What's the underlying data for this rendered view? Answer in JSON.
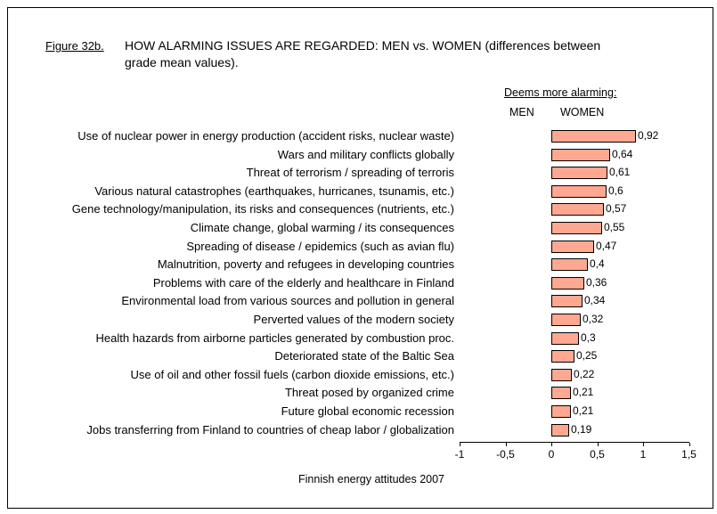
{
  "figure": {
    "label": "Figure 32b.",
    "title_line1": "HOW ALARMING ISSUES ARE REGARDED: MEN vs. WOMEN (differences between",
    "title_line2": "grade mean values)."
  },
  "header": {
    "deems": "Deems more alarming:",
    "men": "MEN",
    "women": "WOMEN"
  },
  "footer": "Finnish energy attitudes 2007",
  "chart_data": {
    "type": "bar",
    "orientation": "horizontal",
    "title": "HOW ALARMING ISSUES ARE REGARDED: MEN vs. WOMEN (differences between grade mean values).",
    "categories": [
      "Use of nuclear power in energy production (accident risks, nuclear waste)",
      "Wars and military conflicts globally",
      "Threat of terrorism / spreading of terroris",
      "Various natural catastrophes (earthquakes, hurricanes, tsunamis, etc.)",
      "Gene technology/manipulation, its risks and consequences (nutrients, etc.)",
      "Climate change, global warming / its consequences",
      "Spreading of disease / epidemics (such as avian flu)",
      "Malnutrition, poverty and refugees in developing countries",
      "Problems with care of the elderly and healthcare in Finland",
      "Environmental load from various sources and pollution in general",
      "Perverted values of the modern society",
      "Health hazards from airborne particles generated by combustion proc.",
      "Deteriorated state of the Baltic Sea",
      "Use of oil and other fossil fuels (carbon dioxide emissions, etc.)",
      "Threat posed by organized crime",
      "Future global economic recession",
      "Jobs transferring from Finland to countries of cheap labor / globalization"
    ],
    "values": [
      0.92,
      0.64,
      0.61,
      0.6,
      0.57,
      0.55,
      0.47,
      0.4,
      0.36,
      0.34,
      0.32,
      0.3,
      0.25,
      0.22,
      0.21,
      0.21,
      0.19
    ],
    "value_labels": [
      "0,92",
      "0,64",
      "0,61",
      "0,6",
      "0,57",
      "0,55",
      "0,47",
      "0,4",
      "0,36",
      "0,34",
      "0,32",
      "0,3",
      "0,25",
      "0,22",
      "0,21",
      "0,21",
      "0,19"
    ],
    "xlim": [
      -1,
      1.5
    ],
    "x_ticks": [
      -1,
      -0.5,
      0,
      0.5,
      1,
      1.5
    ],
    "x_tick_labels": [
      "-1",
      "-0,5",
      "0",
      "0,5",
      "1",
      "1,5"
    ],
    "bar_color": "#FFA891",
    "bar_border_color": "#000000",
    "grid": false,
    "legend": "none",
    "direction_note_left": "MEN",
    "direction_note_right": "WOMEN"
  }
}
